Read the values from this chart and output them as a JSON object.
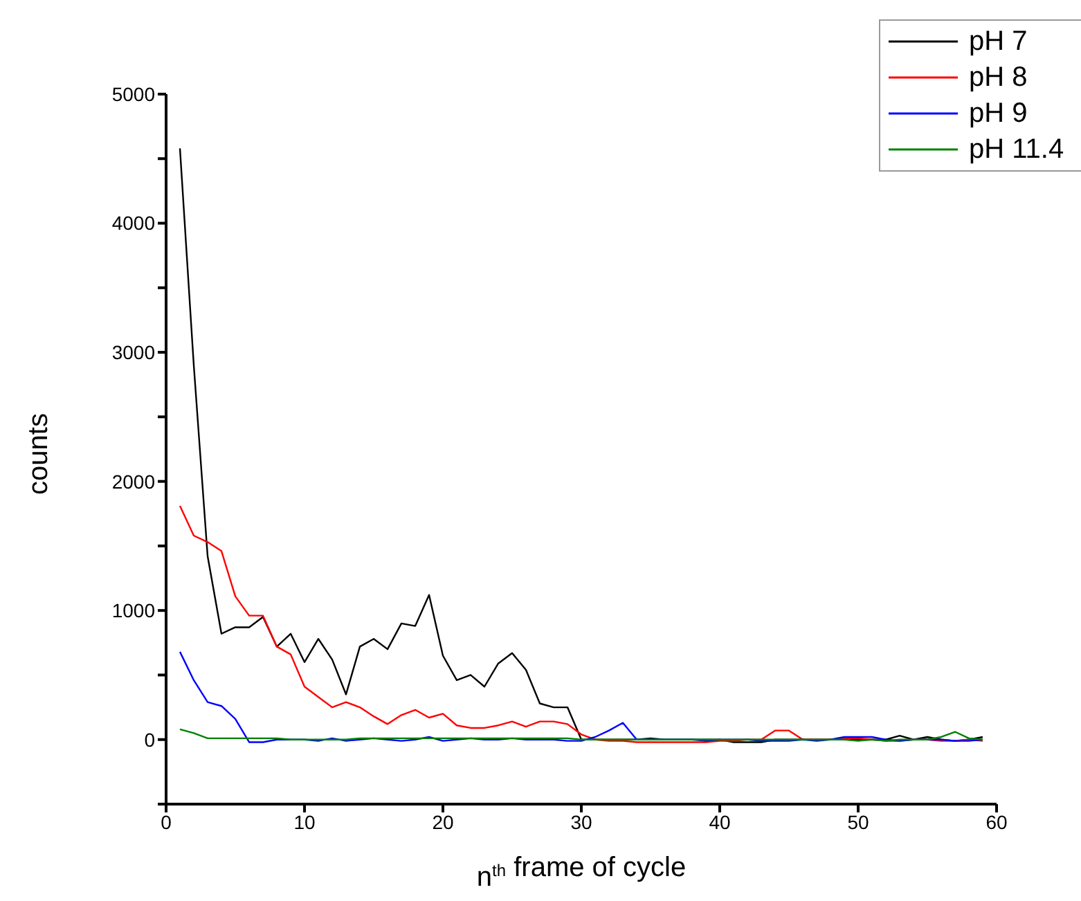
{
  "chart_data": {
    "type": "line",
    "xlabel": "n$^{th}$ frame of cycle",
    "ylabel": "counts",
    "x": [
      1,
      2,
      3,
      4,
      5,
      6,
      7,
      8,
      9,
      10,
      11,
      12,
      13,
      14,
      15,
      16,
      17,
      18,
      19,
      20,
      21,
      22,
      23,
      24,
      25,
      26,
      27,
      28,
      29,
      30,
      31,
      32,
      33,
      34,
      35,
      36,
      37,
      38,
      39,
      40,
      41,
      42,
      43,
      44,
      45,
      46,
      47,
      48,
      49,
      50,
      51,
      52,
      53,
      54,
      55,
      56,
      57,
      58,
      59
    ],
    "series": [
      {
        "name": "pH 7",
        "color": "#000000",
        "values": [
          4580,
          2900,
          1420,
          820,
          870,
          870,
          950,
          720,
          820,
          600,
          780,
          620,
          350,
          720,
          780,
          700,
          900,
          880,
          1120,
          650,
          460,
          500,
          410,
          590,
          670,
          540,
          280,
          250,
          250,
          0,
          0,
          0,
          0,
          0,
          10,
          0,
          0,
          0,
          0,
          0,
          -20,
          -20,
          -20,
          0,
          0,
          0,
          0,
          0,
          10,
          0,
          0,
          0,
          30,
          0,
          20,
          0,
          -10,
          0,
          20
        ]
      },
      {
        "name": "pH 8",
        "color": "#ff0000",
        "values": [
          1810,
          1580,
          1530,
          1460,
          1110,
          960,
          960,
          720,
          660,
          410,
          330,
          250,
          290,
          250,
          180,
          120,
          190,
          230,
          170,
          200,
          110,
          90,
          90,
          110,
          140,
          100,
          140,
          140,
          120,
          40,
          0,
          -10,
          -10,
          -20,
          -20,
          -20,
          -20,
          -20,
          -20,
          -10,
          -10,
          0,
          0,
          70,
          70,
          0,
          0,
          0,
          10,
          10,
          0,
          -10,
          -10,
          0,
          0,
          -10,
          -10,
          0,
          -10
        ]
      },
      {
        "name": "pH 9",
        "color": "#0000ff",
        "values": [
          680,
          460,
          290,
          260,
          160,
          -20,
          -20,
          0,
          0,
          0,
          -10,
          10,
          -10,
          0,
          10,
          0,
          -10,
          0,
          20,
          -10,
          0,
          10,
          0,
          0,
          10,
          0,
          0,
          0,
          -10,
          -10,
          20,
          70,
          130,
          0,
          0,
          0,
          0,
          0,
          -10,
          0,
          0,
          0,
          -10,
          -10,
          -10,
          0,
          -10,
          0,
          20,
          20,
          20,
          0,
          -10,
          0,
          0,
          0,
          -10,
          -10,
          0
        ]
      },
      {
        "name": "pH 11.4",
        "color": "#008000",
        "values": [
          80,
          50,
          10,
          10,
          10,
          10,
          10,
          10,
          0,
          0,
          0,
          0,
          0,
          10,
          10,
          10,
          10,
          10,
          10,
          10,
          10,
          10,
          10,
          10,
          10,
          10,
          10,
          10,
          10,
          0,
          0,
          0,
          0,
          0,
          0,
          0,
          0,
          0,
          0,
          0,
          0,
          0,
          0,
          0,
          0,
          0,
          0,
          0,
          0,
          -10,
          0,
          -10,
          0,
          0,
          0,
          20,
          60,
          10,
          0
        ]
      }
    ],
    "xlim": [
      0,
      60
    ],
    "xticks": [
      0,
      10,
      20,
      30,
      40,
      50,
      60
    ],
    "ylim": [
      -500,
      5000
    ],
    "yticks": [
      {
        "value": -500,
        "label": null
      },
      0,
      {
        "value": 500,
        "label": null
      },
      1000,
      {
        "value": 1500,
        "label": null
      },
      2000,
      {
        "value": 2500,
        "label": null
      },
      3000,
      {
        "value": 3500,
        "label": null
      },
      4000,
      {
        "value": 4500,
        "label": null
      },
      5000
    ],
    "grid": false,
    "legend": "top right",
    "marker": "none",
    "line_style": "solid"
  }
}
